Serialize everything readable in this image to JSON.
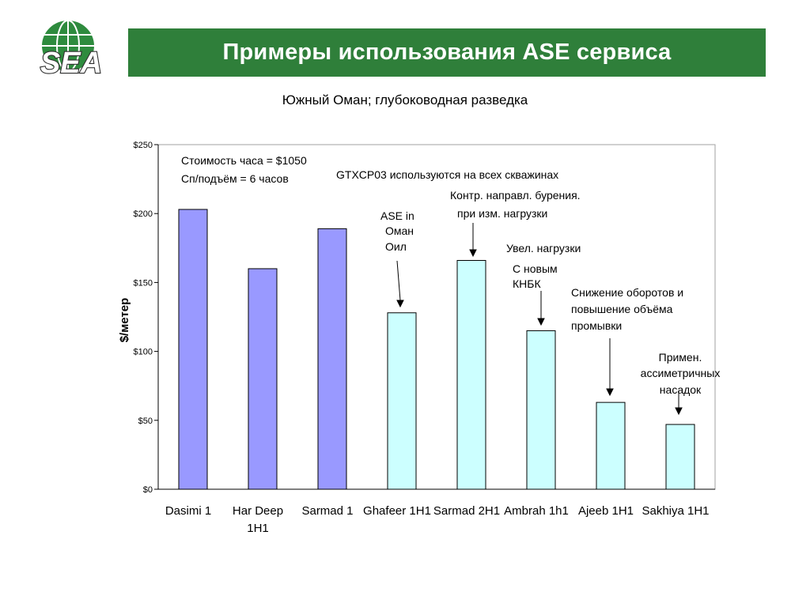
{
  "header": {
    "title": "Примеры использования ASE сервиса",
    "logo_text": "SEA"
  },
  "subtitle": "Южный Оман; глубоководная разведка",
  "colors": {
    "title_bar": "#2f7f3a",
    "bar_before": "#9999ff",
    "bar_after": "#ccffff",
    "logo_green": "#2e8b3e"
  },
  "chart_data": {
    "type": "bar",
    "ylabel": "$/метер",
    "ylim": [
      0,
      250
    ],
    "yticks": [
      "$0",
      "$50",
      "$100",
      "$150",
      "$200",
      "$250"
    ],
    "categories": [
      "Dasimi 1",
      "Har Deep 1H1",
      "Sarmad 1",
      "Ghafeer 1H1",
      "Sarmad 2H1",
      "Ambrah 1h1",
      "Ajeeb 1H1",
      "Sakhiya 1H1"
    ],
    "category_lines": [
      [
        "Dasimi 1"
      ],
      [
        "Har Deep",
        "1H1"
      ],
      [
        "Sarmad 1"
      ],
      [
        "Ghafeer 1H1"
      ],
      [
        "Sarmad 2H1"
      ],
      [
        "Ambrah 1h1"
      ],
      [
        "Ajeeb 1H1"
      ],
      [
        "Sakhiya 1H1"
      ]
    ],
    "values": [
      203,
      160,
      189,
      128,
      166,
      115,
      63,
      47
    ],
    "bar_groups": [
      "before",
      "before",
      "before",
      "after",
      "after",
      "after",
      "after",
      "after"
    ],
    "grid": false,
    "annotations": {
      "cost_lines": [
        "Стоимость часа = $1050",
        "Сп/подъём = 6 часов"
      ],
      "gtxcp": "GTXCP03 используются на всех скважинах",
      "ase_lines": [
        "ASE in",
        "Оман",
        "Оил"
      ],
      "directional_lines": [
        "Контр. направл. бурения.",
        "при изм. нагрузки"
      ],
      "load_lines": [
        "Увел. нагрузки",
        "С новым",
        "КНБК"
      ],
      "rpm_lines": [
        "Снижение оборотов и",
        "повышение объёма",
        "промывки"
      ],
      "asym_lines": [
        "Примен.",
        "ассиметричных",
        "насадок"
      ]
    }
  }
}
